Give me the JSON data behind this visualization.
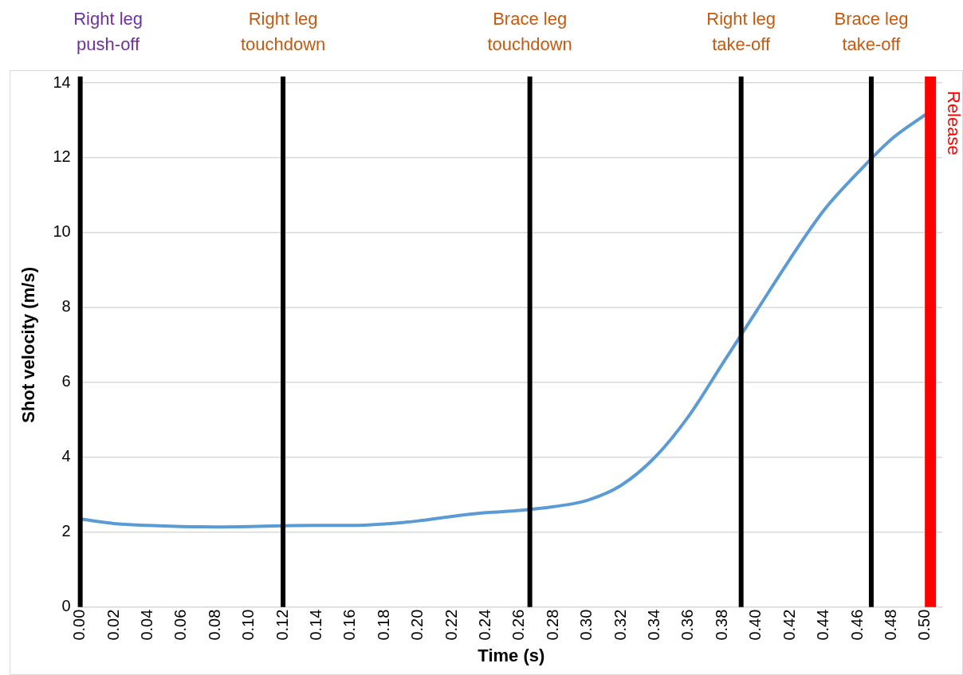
{
  "chart_data": {
    "type": "line",
    "xlabel": "Time (s)",
    "ylabel": "Shot velocity (m/s)",
    "x": [
      0,
      0.02,
      0.04,
      0.06,
      0.08,
      0.1,
      0.12,
      0.14,
      0.16,
      0.18,
      0.2,
      0.22,
      0.24,
      0.26,
      0.28,
      0.3,
      0.32,
      0.34,
      0.36,
      0.38,
      0.4,
      0.42,
      0.44,
      0.46,
      0.48,
      0.5
    ],
    "series": [
      {
        "color": "#5b9bd5",
        "values": [
          2.35,
          2.23,
          2.18,
          2.15,
          2.14,
          2.15,
          2.17,
          2.18,
          2.18,
          2.22,
          2.3,
          2.42,
          2.52,
          2.58,
          2.68,
          2.85,
          3.25,
          4.0,
          5.1,
          6.5,
          7.9,
          9.3,
          10.6,
          11.6,
          12.5,
          13.15
        ]
      }
    ],
    "xlim": [
      0,
      0.51
    ],
    "ylim": [
      0,
      14
    ],
    "xticks": [
      {
        "value": 0,
        "label": "0.00"
      },
      {
        "value": 0.02,
        "label": "0.02"
      },
      {
        "value": 0.04,
        "label": "0.04"
      },
      {
        "value": 0.06,
        "label": "0.06"
      },
      {
        "value": 0.08,
        "label": "0.08"
      },
      {
        "value": 0.1,
        "label": "0.10"
      },
      {
        "value": 0.12,
        "label": "0.12"
      },
      {
        "value": 0.14,
        "label": "0.14"
      },
      {
        "value": 0.16,
        "label": "0.16"
      },
      {
        "value": 0.18,
        "label": "0.18"
      },
      {
        "value": 0.2,
        "label": "0.20"
      },
      {
        "value": 0.22,
        "label": "0.22"
      },
      {
        "value": 0.24,
        "label": "0.24"
      },
      {
        "value": 0.26,
        "label": "0.26"
      },
      {
        "value": 0.28,
        "label": "0.28"
      },
      {
        "value": 0.3,
        "label": "0.30"
      },
      {
        "value": 0.32,
        "label": "0.32"
      },
      {
        "value": 0.34,
        "label": "0.34"
      },
      {
        "value": 0.36,
        "label": "0.36"
      },
      {
        "value": 0.38,
        "label": "0.38"
      },
      {
        "value": 0.4,
        "label": "0.40"
      },
      {
        "value": 0.42,
        "label": "0.42"
      },
      {
        "value": 0.44,
        "label": "0.44"
      },
      {
        "value": 0.46,
        "label": "0.46"
      },
      {
        "value": 0.48,
        "label": "0.48"
      },
      {
        "value": 0.5,
        "label": "0.50"
      }
    ],
    "yticks": [
      0,
      2,
      4,
      6,
      8,
      10,
      12,
      14
    ],
    "grid": "y",
    "marker": "none",
    "line_style": "solid",
    "legend": false,
    "ref_lines": [
      {
        "axis": "x",
        "value": 0,
        "label": "Right leg push-off",
        "color": "#000000"
      },
      {
        "axis": "x",
        "value": 0.12,
        "label": "Right leg touchdown",
        "color": "#000000"
      },
      {
        "axis": "x",
        "value": 0.266,
        "label": "Brace leg touchdown",
        "color": "#000000"
      },
      {
        "axis": "x",
        "value": 0.391,
        "label": "Right leg take-off",
        "color": "#000000"
      },
      {
        "axis": "x",
        "value": 0.468,
        "label": "Brace leg take-off",
        "color": "#000000"
      },
      {
        "axis": "x",
        "value": 0.503,
        "label": "Release",
        "color": "#ff0000"
      }
    ]
  }
}
